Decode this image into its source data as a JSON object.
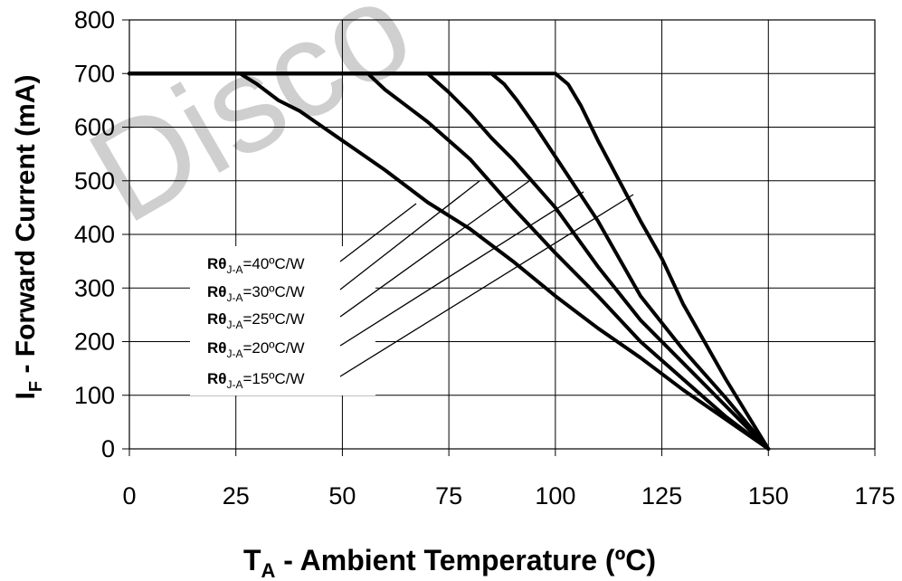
{
  "chart_data": {
    "type": "line",
    "xlabel": {
      "main": "T",
      "sub": "A",
      "rest": " - Ambient Temperature (ºC)"
    },
    "ylabel": {
      "main": "I",
      "sub": "F",
      "rest": " - Forward Current (mA)"
    },
    "xlim": [
      0,
      175
    ],
    "ylim": [
      0,
      800
    ],
    "x_ticks": [
      "0",
      "25",
      "50",
      "75",
      "100",
      "125",
      "150",
      "175"
    ],
    "y_ticks": [
      "0",
      "100",
      "200",
      "300",
      "400",
      "500",
      "600",
      "700",
      "800"
    ],
    "grid": true,
    "watermark": "Disco",
    "series": [
      {
        "name": "Rθ_J-A=40ºC/W",
        "x": [
          0,
          26,
          30,
          35,
          40,
          50,
          60,
          70,
          80,
          90,
          100,
          110,
          120,
          130,
          140,
          150
        ],
        "y": [
          700,
          700,
          680,
          650,
          630,
          575,
          520,
          460,
          410,
          350,
          285,
          225,
          170,
          110,
          55,
          0
        ]
      },
      {
        "name": "Rθ_J-A=30ºC/W",
        "x": [
          0,
          56,
          60,
          65,
          70,
          80,
          90,
          100,
          110,
          120,
          130,
          140,
          150
        ],
        "y": [
          700,
          700,
          670,
          640,
          610,
          540,
          450,
          365,
          285,
          200,
          130,
          60,
          0
        ]
      },
      {
        "name": "Rθ_J-A=25ºC/W",
        "x": [
          0,
          70,
          75,
          80,
          85,
          90,
          100,
          110,
          120,
          130,
          140,
          150
        ],
        "y": [
          700,
          700,
          665,
          625,
          580,
          540,
          450,
          340,
          240,
          160,
          80,
          0
        ]
      },
      {
        "name": "Rθ_J-A=20ºC/W",
        "x": [
          0,
          85,
          88,
          91,
          95,
          100,
          110,
          120,
          130,
          140,
          150
        ],
        "y": [
          700,
          700,
          680,
          650,
          605,
          545,
          425,
          285,
          185,
          95,
          0
        ]
      },
      {
        "name": "Rθ_J-A=15ºC/W",
        "x": [
          0,
          100,
          103,
          106,
          110,
          115,
          120,
          125,
          130,
          140,
          150
        ],
        "y": [
          700,
          700,
          680,
          640,
          575,
          500,
          425,
          355,
          270,
          130,
          0
        ]
      }
    ],
    "annotations": [
      {
        "main": "Rθ",
        "sub": "J-A",
        "rest": "=40ºC/W",
        "series": 0
      },
      {
        "main": "Rθ",
        "sub": "J-A",
        "rest": "=30ºC/W",
        "series": 1
      },
      {
        "main": "Rθ",
        "sub": "J-A",
        "rest": "=25ºC/W",
        "series": 2
      },
      {
        "main": "Rθ",
        "sub": "J-A",
        "rest": "=20ºC/W",
        "series": 3
      },
      {
        "main": "Rθ",
        "sub": "J-A",
        "rest": "=15ºC/W",
        "series": 4
      }
    ]
  }
}
